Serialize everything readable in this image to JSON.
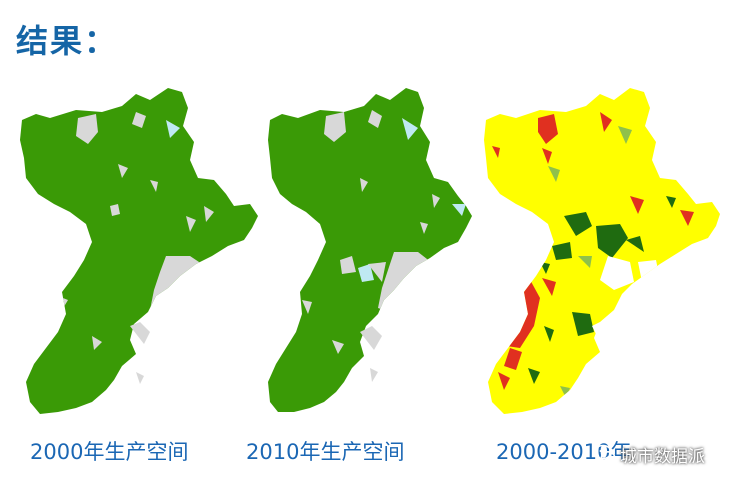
{
  "title": "结果：",
  "maps": [
    {
      "caption": "2000年生产空间",
      "colors": {
        "main": "#3a9a06",
        "gap": "#d8d8d8",
        "water": "#bfe9f2"
      }
    },
    {
      "caption": "2010年生产空间",
      "colors": {
        "main": "#3a9a06",
        "gap": "#d8d8d8",
        "water": "#bfe9f2"
      }
    },
    {
      "caption": "2000-2010年",
      "colors": {
        "main": "#ffff00",
        "red": "#e03020",
        "green": "#1f6b10",
        "lightgreen": "#8fc14a"
      }
    }
  ],
  "watermark": {
    "text": "城市数据派",
    "icon": "wechat-icon"
  }
}
